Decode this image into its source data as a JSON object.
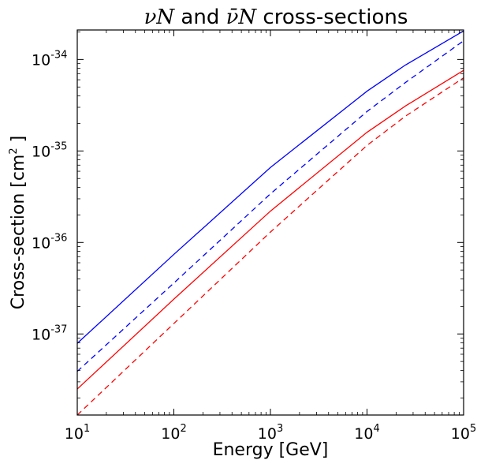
{
  "chart_data": {
    "type": "line",
    "title": {
      "nu_math": "νN",
      "nubar_math": "ν̄N",
      "and_text": " and ",
      "rest_text": " cross-sections"
    },
    "xlabel": "Energy [GeV]",
    "ylabel": {
      "main": "Cross-section [cm",
      "superscript": "2",
      "close": " ]"
    },
    "x_scale": "log",
    "y_scale": "log",
    "xlim": [
      10,
      100000
    ],
    "ylim": [
      1.3e-38,
      2.1e-34
    ],
    "x_ticks": [
      {
        "value": 10,
        "base": "10",
        "exp": "1"
      },
      {
        "value": 100,
        "base": "10",
        "exp": "2"
      },
      {
        "value": 1000,
        "base": "10",
        "exp": "3"
      },
      {
        "value": 10000,
        "base": "10",
        "exp": "4"
      },
      {
        "value": 100000,
        "base": "10",
        "exp": "5"
      }
    ],
    "y_ticks": [
      {
        "value": 1e-37,
        "base": "10",
        "exp": "-37"
      },
      {
        "value": 1e-36,
        "base": "10",
        "exp": "-36"
      },
      {
        "value": 1e-35,
        "base": "10",
        "exp": "-35"
      },
      {
        "value": 1e-34,
        "base": "10",
        "exp": "-34"
      }
    ],
    "grid": false,
    "legend": "none",
    "series": [
      {
        "color": "#0000ff",
        "dash": "solid",
        "x": [
          10,
          100,
          1000,
          10000,
          25000,
          100000
        ],
        "y": [
          7.9e-38,
          7.4e-37,
          6.6e-36,
          4.5e-35,
          8.7e-35,
          2.05e-34
        ]
      },
      {
        "color": "#0000ff",
        "dash": "dashed",
        "x": [
          10,
          100,
          1000,
          10000,
          25000,
          100000
        ],
        "y": [
          3.9e-38,
          3.6e-37,
          3.4e-36,
          2.7e-35,
          5.6e-35,
          1.6e-34
        ]
      },
      {
        "color": "#ff0000",
        "dash": "solid",
        "x": [
          10,
          100,
          1000,
          10000,
          25000,
          100000
        ],
        "y": [
          2.5e-38,
          2.4e-37,
          2.2e-36,
          1.6e-35,
          3.1e-35,
          7.6e-35
        ]
      },
      {
        "color": "#ff0000",
        "dash": "dashed",
        "x": [
          10,
          100,
          1000,
          10000,
          25000,
          100000
        ],
        "y": [
          1.3e-38,
          1.3e-37,
          1.3e-36,
          1.15e-35,
          2.4e-35,
          6.3e-35
        ]
      }
    ]
  }
}
